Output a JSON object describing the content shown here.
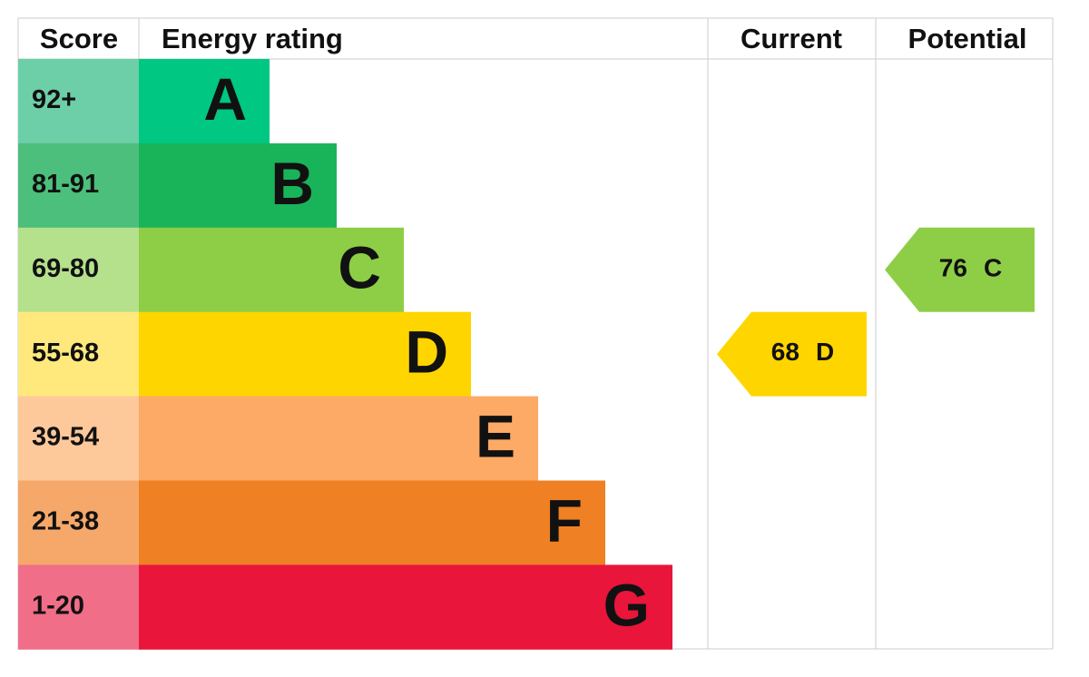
{
  "headers": {
    "score": "Score",
    "rating": "Energy rating",
    "current": "Current",
    "potential": "Potential"
  },
  "bands": [
    {
      "score": "92+",
      "letter": "A",
      "color": "#00c781",
      "light": "#6ccfa8"
    },
    {
      "score": "81-91",
      "letter": "B",
      "color": "#19b459",
      "light": "#4cbf7c"
    },
    {
      "score": "69-80",
      "letter": "C",
      "color": "#8dce46",
      "light": "#b5e08c"
    },
    {
      "score": "55-68",
      "letter": "D",
      "color": "#ffd500",
      "light": "#ffe97c"
    },
    {
      "score": "39-54",
      "letter": "E",
      "color": "#fcaa65",
      "light": "#fdc99b"
    },
    {
      "score": "21-38",
      "letter": "F",
      "color": "#ef8023",
      "light": "#f5a86a"
    },
    {
      "score": "1-20",
      "letter": "G",
      "color": "#e9153b",
      "light": "#f06e88"
    }
  ],
  "current": {
    "score": 68,
    "rating": "D"
  },
  "potential": {
    "score": 76,
    "rating": "C"
  }
}
